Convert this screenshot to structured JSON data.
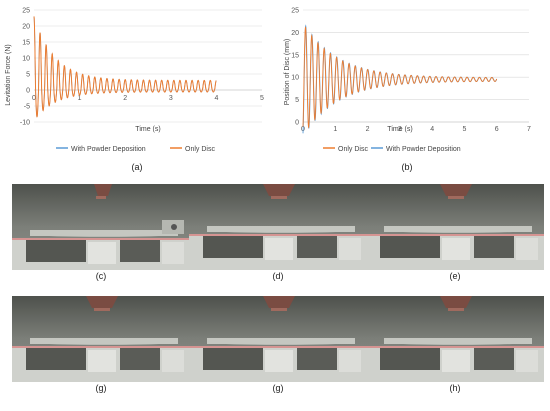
{
  "charts": [
    {
      "type": "line",
      "title": "",
      "xlabel": "Time (s)",
      "ylabel": "Levitation Force (N)",
      "xlim": [
        0,
        5
      ],
      "ylim": [
        -10,
        25
      ],
      "xticks": [
        "0",
        "1",
        "2",
        "3",
        "4",
        "5"
      ],
      "yticks": [
        "-10",
        "-5",
        "0",
        "5",
        "10",
        "15",
        "20",
        "25"
      ],
      "grid": true,
      "legend_position": "bottom",
      "panel": "(a)",
      "series": [
        {
          "name": "With Powder Deposition",
          "color": "#5b9bd5"
        },
        {
          "name": "Only Disc",
          "color": "#ed7d31"
        }
      ]
    },
    {
      "type": "line",
      "title": "",
      "xlabel": "Time (s)",
      "ylabel": "Position of Disc (mm)",
      "xlim": [
        0,
        7
      ],
      "ylim": [
        0,
        25
      ],
      "xticks": [
        "0",
        "1",
        "2",
        "3",
        "4",
        "5",
        "6",
        "7"
      ],
      "yticks": [
        "0",
        "5",
        "10",
        "15",
        "20",
        "25"
      ],
      "grid": true,
      "legend_position": "bottom",
      "panel": "(b)",
      "series": [
        {
          "name": "Only Disc",
          "color": "#ed7d31"
        },
        {
          "name": "With Powder Deposition",
          "color": "#5b9bd5"
        }
      ]
    }
  ],
  "chart_data": [
    {
      "type": "line",
      "description": "Levitation force oscillation decaying from ~22 N peak to ~±2.5 N band over 4 s",
      "x_range": [
        0,
        4
      ],
      "initial_peak": 22.5,
      "initial_trough": -9,
      "steady_amplitude": 2.5,
      "steady_offset": 0.5
    },
    {
      "type": "line",
      "description": "Disc position damped oscillation around 9.5 mm over 6 s",
      "x_range": [
        0,
        6
      ],
      "initial_peak": 22.5,
      "initial_trough": 1,
      "equilibrium": 9.5
    }
  ],
  "photos": [
    {
      "label": "(c)"
    },
    {
      "label": "(d)"
    },
    {
      "label": "(e)"
    },
    {
      "label": "(g)"
    },
    {
      "label": "(g)"
    },
    {
      "label": "(h)"
    }
  ],
  "colors": {
    "blue": "#5b9bd5",
    "orange": "#ed7d31",
    "grid": "#d9d9d9"
  }
}
